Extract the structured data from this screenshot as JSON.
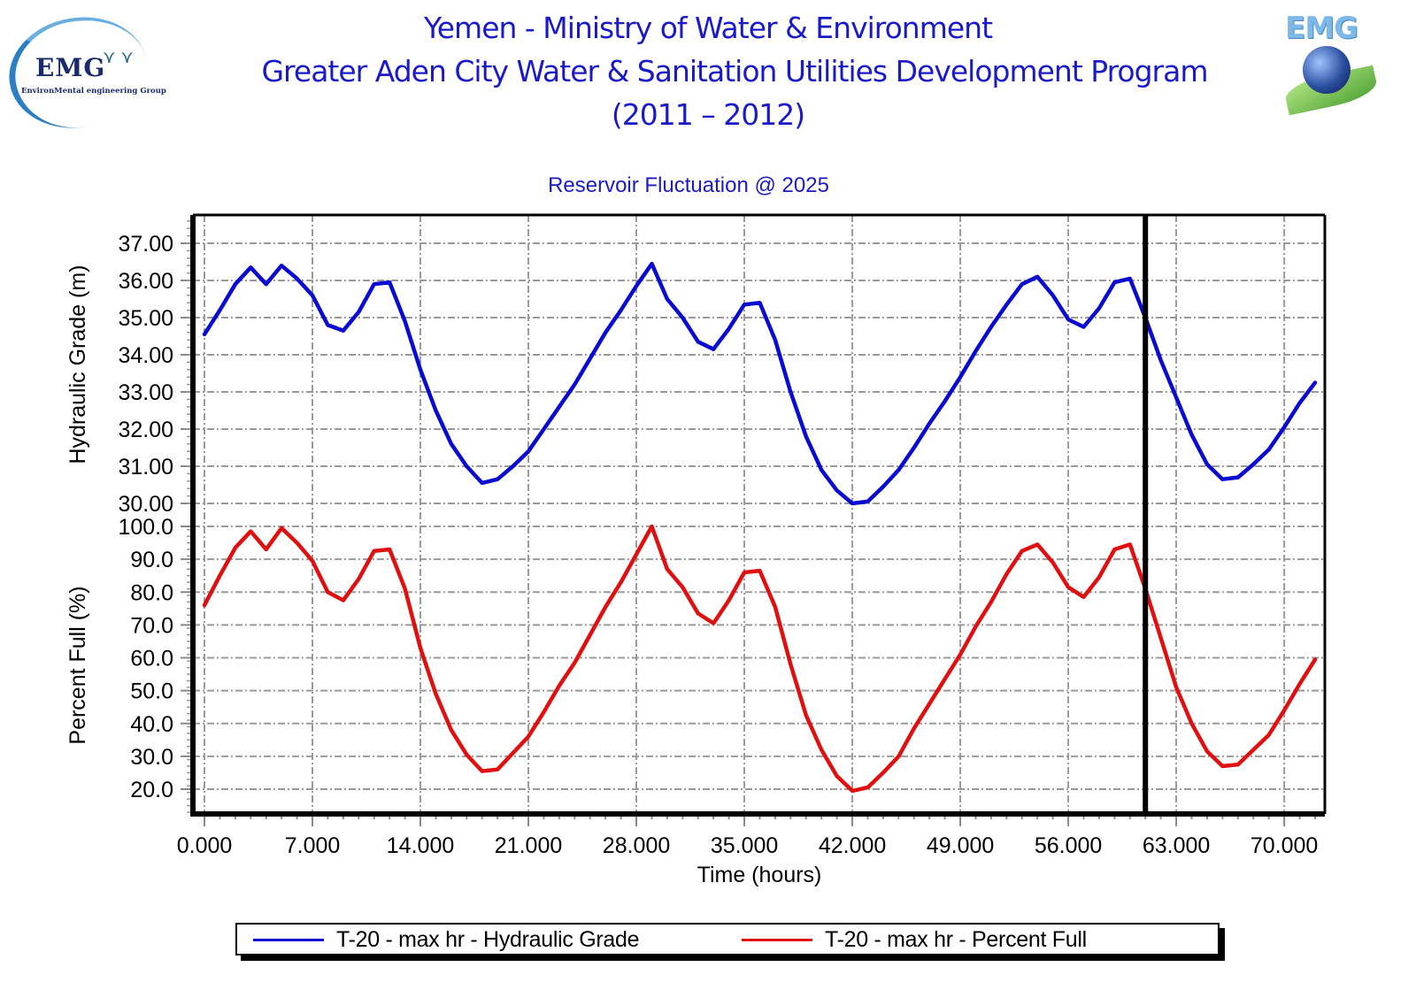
{
  "header": {
    "title_line1": "Yemen - Ministry of Water & Environment",
    "title_line2": "Greater Aden City Water & Sanitation Utilities Development Program",
    "title_line3": "(2011 – 2012)",
    "logo_left": {
      "text": "EMG",
      "subtitle": "EnvironMental engineering Group"
    },
    "logo_right": {
      "text": "EMG"
    }
  },
  "colors": {
    "title": "#1a1ac8",
    "hydraulic_grade": "#0a0ad0",
    "percent_full": "#e01010",
    "grid": "#9a9a9a",
    "axis": "#000000"
  },
  "chart_data": {
    "type": "line",
    "title": "Reservoir Fluctuation @ 2025",
    "xlabel": "Time (hours)",
    "xlim": [
      0,
      73
    ],
    "x_ticks": [
      0,
      7,
      14,
      21,
      28,
      35,
      42,
      49,
      56,
      63,
      70
    ],
    "x_tick_labels": [
      "0.000",
      "7.000",
      "14.000",
      "21.000",
      "28.000",
      "35.000",
      "42.000",
      "49.000",
      "56.000",
      "63.000",
      "70.000"
    ],
    "current_time_marker": 61,
    "grid": true,
    "legend_position": "bottom",
    "panels": [
      {
        "name": "hydraulic-grade",
        "ylabel": "Hydraulic Grade (m)",
        "ylim": [
          30,
          37.7
        ],
        "y_ticks": [
          30,
          31,
          32,
          33,
          34,
          35,
          36,
          37
        ],
        "y_tick_labels": [
          "30.00",
          "31.00",
          "32.00",
          "33.00",
          "34.00",
          "35.00",
          "36.00",
          "37.00"
        ]
      },
      {
        "name": "percent-full",
        "ylabel": "Percent Full (%)",
        "ylim": [
          11,
          100
        ],
        "y_ticks": [
          20,
          30,
          40,
          50,
          60,
          70,
          80,
          90,
          100
        ],
        "y_tick_labels": [
          "20.0",
          "30.0",
          "40.0",
          "50.0",
          "60.0",
          "70.0",
          "80.0",
          "90.0",
          "100.0"
        ]
      }
    ],
    "x": [
      0,
      1,
      2,
      3,
      4,
      5,
      6,
      7,
      8,
      9,
      10,
      11,
      12,
      13,
      14,
      15,
      16,
      17,
      18,
      19,
      20,
      21,
      22,
      23,
      24,
      25,
      26,
      27,
      28,
      29,
      30,
      31,
      32,
      33,
      34,
      35,
      36,
      37,
      38,
      39,
      40,
      41,
      42,
      43,
      44,
      45,
      46,
      47,
      48,
      49,
      50,
      51,
      52,
      53,
      54,
      55,
      56,
      57,
      58,
      59,
      60,
      61,
      62,
      63,
      64,
      65,
      66,
      67,
      68,
      69,
      70,
      71,
      72
    ],
    "series": [
      {
        "name": "T-20 - max hr - Hydraulic Grade",
        "panel": 0,
        "color": "#0a0ad0",
        "values": [
          34.55,
          35.2,
          35.9,
          36.35,
          35.9,
          36.4,
          36.05,
          35.6,
          34.8,
          34.65,
          35.15,
          35.9,
          35.95,
          34.9,
          33.6,
          32.5,
          31.6,
          31.0,
          30.55,
          30.65,
          31.0,
          31.4,
          32.0,
          32.6,
          33.2,
          33.9,
          34.6,
          35.2,
          35.85,
          36.45,
          35.5,
          35.0,
          34.35,
          34.15,
          34.7,
          35.35,
          35.4,
          34.4,
          33.0,
          31.8,
          30.9,
          30.35,
          30.0,
          30.05,
          30.45,
          30.9,
          31.5,
          32.15,
          32.75,
          33.4,
          34.1,
          34.75,
          35.35,
          35.9,
          36.1,
          35.6,
          34.95,
          34.75,
          35.25,
          35.95,
          36.05,
          35.0,
          33.85,
          32.85,
          31.85,
          31.05,
          30.65,
          30.7,
          31.05,
          31.45,
          32.05,
          32.7,
          33.25
        ]
      },
      {
        "name": "T-20 - max hr - Percent Full",
        "panel": 1,
        "color": "#e01010",
        "values": [
          76,
          85,
          93.5,
          98.5,
          93,
          99.5,
          95,
          89.5,
          80,
          77.5,
          84,
          92.5,
          93,
          81,
          63,
          49,
          38,
          30.5,
          25.5,
          26,
          31,
          36,
          43.5,
          51.5,
          58.5,
          67,
          75.5,
          83,
          91.5,
          100,
          87,
          81.5,
          73.5,
          70.5,
          77.5,
          86,
          86.5,
          75.5,
          58,
          42.5,
          32,
          24,
          19.5,
          20.5,
          25,
          30,
          38.5,
          46,
          53.5,
          61,
          69.5,
          77,
          85.5,
          92.5,
          94.5,
          89,
          81.5,
          78.5,
          84.5,
          93,
          94.5,
          81,
          66,
          51,
          40,
          31.5,
          27,
          27.5,
          32,
          36.5,
          44,
          52,
          59.5
        ]
      }
    ]
  }
}
